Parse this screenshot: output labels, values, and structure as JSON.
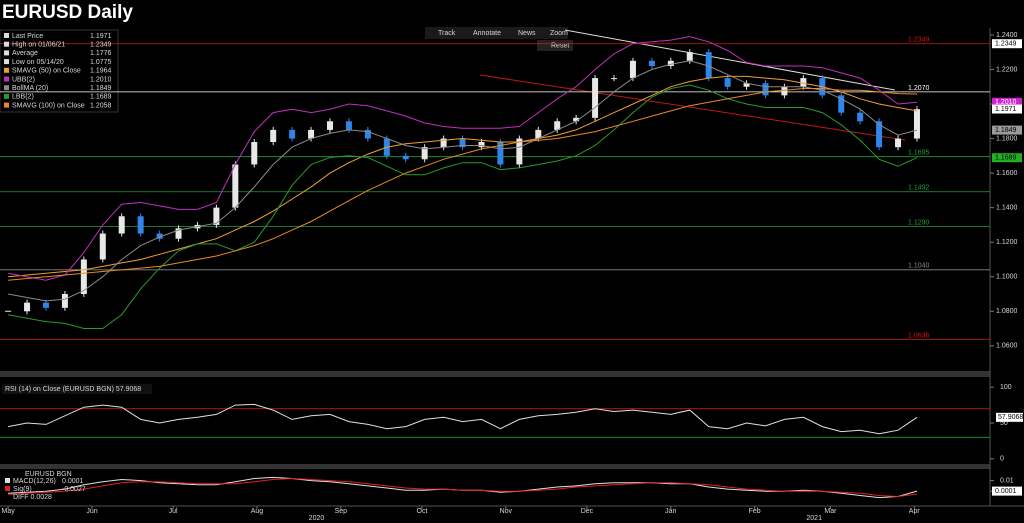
{
  "title": "EURUSD Daily",
  "toolbar": [
    "Track",
    "Annotate",
    "News",
    "Zoom",
    "Reset"
  ],
  "chart_data": [
    {
      "type": "candlestick",
      "x": [
        0,
        7,
        14,
        21,
        28,
        35,
        42,
        49,
        56,
        63,
        70,
        77,
        84,
        91,
        98,
        105,
        112,
        119,
        126,
        133,
        140,
        147,
        154,
        161,
        168,
        175,
        182,
        189,
        196,
        203,
        210,
        217,
        224,
        231,
        238,
        245,
        252,
        259,
        266,
        273,
        280,
        287,
        294,
        301,
        308,
        315,
        322,
        329,
        336
      ],
      "xlim": [
        -3,
        363
      ],
      "xticks": [
        {
          "value": 0,
          "label": "May"
        },
        {
          "value": 31,
          "label": "Jun"
        },
        {
          "value": 61,
          "label": "Jul"
        },
        {
          "value": 92,
          "label": "Aug"
        },
        {
          "value": 123,
          "label": "Sep"
        },
        {
          "value": 153,
          "label": "Oct"
        },
        {
          "value": 184,
          "label": "Nov"
        },
        {
          "value": 214,
          "label": "Dec"
        },
        {
          "value": 245,
          "label": "Jan"
        },
        {
          "value": 276,
          "label": "Feb"
        },
        {
          "value": 304,
          "label": "Mar"
        },
        {
          "value": 335,
          "label": "Apr"
        }
      ],
      "year_labels": [
        {
          "value": 114,
          "label": "2020"
        },
        {
          "value": 298,
          "label": "2021"
        }
      ],
      "ylim": [
        1.046,
        1.244
      ],
      "yticks": [
        {
          "value": 1.24,
          "label": "1.2400"
        },
        {
          "value": 1.22,
          "label": "1.2200"
        },
        {
          "value": 1.2,
          "label": "1.2000"
        },
        {
          "value": 1.18,
          "label": "1.1800"
        },
        {
          "value": 1.16,
          "label": "1.1600"
        },
        {
          "value": 1.14,
          "label": "1.1400"
        },
        {
          "value": 1.12,
          "label": "1.1200"
        },
        {
          "value": 1.1,
          "label": "1.1000"
        },
        {
          "value": 1.08,
          "label": "1.0800"
        },
        {
          "value": 1.06,
          "label": "1.0600"
        }
      ],
      "up_color": "#e8e8e8",
      "down_color": "#2f86e8",
      "series": [
        {
          "name": "Last Price",
          "style": "candle",
          "values": [
            1.08,
            1.085,
            1.082,
            1.09,
            1.11,
            1.125,
            1.135,
            1.125,
            1.122,
            1.128,
            1.13,
            1.14,
            1.165,
            1.178,
            1.185,
            1.18,
            1.185,
            1.19,
            1.185,
            1.18,
            1.17,
            1.168,
            1.175,
            1.18,
            1.175,
            1.178,
            1.165,
            1.18,
            1.185,
            1.19,
            1.192,
            1.215,
            1.215,
            1.225,
            1.222,
            1.225,
            1.23,
            1.215,
            1.21,
            1.212,
            1.205,
            1.21,
            1.215,
            1.205,
            1.195,
            1.19,
            1.175,
            1.18,
            1.197
          ]
        },
        {
          "name": "SMAVG (50)  on Close",
          "style": "line",
          "color": "#f0a030",
          "values": [
            1.1,
            1.101,
            1.102,
            1.103,
            1.104,
            1.106,
            1.108,
            1.11,
            1.113,
            1.116,
            1.119,
            1.122,
            1.127,
            1.132,
            1.138,
            1.145,
            1.152,
            1.16,
            1.166,
            1.171,
            1.175,
            1.177,
            1.178,
            1.179,
            1.18,
            1.179,
            1.178,
            1.178,
            1.18,
            1.182,
            1.185,
            1.19,
            1.195,
            1.2,
            1.205,
            1.21,
            1.213,
            1.215,
            1.216,
            1.216,
            1.215,
            1.214,
            1.212,
            1.21,
            1.207,
            1.203,
            1.2,
            1.198,
            1.196
          ]
        },
        {
          "name": "UBB(2)",
          "style": "line",
          "color": "#c030c0",
          "values": [
            1.102,
            1.1,
            1.098,
            1.101,
            1.114,
            1.13,
            1.142,
            1.143,
            1.141,
            1.139,
            1.139,
            1.143,
            1.165,
            1.184,
            1.195,
            1.197,
            1.195,
            1.197,
            1.2,
            1.199,
            1.196,
            1.193,
            1.189,
            1.187,
            1.186,
            1.186,
            1.186,
            1.187,
            1.195,
            1.203,
            1.21,
            1.22,
            1.229,
            1.235,
            1.236,
            1.237,
            1.239,
            1.236,
            1.231,
            1.224,
            1.222,
            1.222,
            1.222,
            1.221,
            1.218,
            1.215,
            1.208,
            1.2,
            1.201
          ]
        },
        {
          "name": "BollMA (20)",
          "style": "line",
          "color": "#8a8a8a",
          "values": [
            1.09,
            1.088,
            1.086,
            1.087,
            1.092,
            1.1,
            1.11,
            1.118,
            1.123,
            1.127,
            1.129,
            1.131,
            1.14,
            1.152,
            1.165,
            1.175,
            1.18,
            1.183,
            1.185,
            1.184,
            1.18,
            1.176,
            1.174,
            1.175,
            1.176,
            1.176,
            1.174,
            1.175,
            1.18,
            1.185,
            1.19,
            1.198,
            1.207,
            1.215,
            1.22,
            1.223,
            1.225,
            1.222,
            1.217,
            1.212,
            1.21,
            1.21,
            1.21,
            1.208,
            1.203,
            1.197,
            1.188,
            1.182,
            1.1849
          ]
        },
        {
          "name": "LBB(2)",
          "style": "line",
          "color": "#2a9a2a",
          "values": [
            1.078,
            1.076,
            1.074,
            1.073,
            1.07,
            1.07,
            1.078,
            1.093,
            1.105,
            1.115,
            1.119,
            1.119,
            1.115,
            1.12,
            1.135,
            1.153,
            1.165,
            1.169,
            1.17,
            1.169,
            1.164,
            1.159,
            1.159,
            1.163,
            1.166,
            1.166,
            1.162,
            1.163,
            1.165,
            1.167,
            1.17,
            1.176,
            1.185,
            1.195,
            1.204,
            1.209,
            1.211,
            1.208,
            1.203,
            1.2,
            1.198,
            1.198,
            1.198,
            1.195,
            1.188,
            1.179,
            1.168,
            1.164,
            1.1689
          ]
        },
        {
          "name": "SMAVG (100)  on Close",
          "style": "line",
          "color": "#e88a20",
          "values": [
            1.098,
            1.099,
            1.1,
            1.101,
            1.102,
            1.103,
            1.104,
            1.105,
            1.106,
            1.108,
            1.11,
            1.112,
            1.115,
            1.118,
            1.122,
            1.127,
            1.132,
            1.138,
            1.144,
            1.15,
            1.155,
            1.16,
            1.164,
            1.168,
            1.171,
            1.174,
            1.176,
            1.178,
            1.179,
            1.18,
            1.182,
            1.184,
            1.187,
            1.19,
            1.193,
            1.196,
            1.199,
            1.201,
            1.203,
            1.205,
            1.207,
            1.208,
            1.209,
            1.209,
            1.208,
            1.208,
            1.207,
            1.206,
            1.2058
          ]
        }
      ],
      "levels": [
        {
          "value": 1.2349,
          "label": "1.2349",
          "color": "#d01818"
        },
        {
          "value": 1.207,
          "label": "1.2070",
          "color": "#ffffff"
        },
        {
          "value": 1.1695,
          "label": "1.1695",
          "color": "#1fa03a"
        },
        {
          "value": 1.1492,
          "label": "1.1492",
          "color": "#1fa03a"
        },
        {
          "value": 1.129,
          "label": "1.1290",
          "color": "#1fa03a"
        },
        {
          "value": 1.104,
          "label": "1.1040",
          "color": "#888888"
        },
        {
          "value": 1.0636,
          "label": "1.0636",
          "color": "#d01818"
        }
      ],
      "legend": [
        {
          "label": "Last Price",
          "value": "1.1971",
          "color": "#dddddd"
        },
        {
          "label": "High on 01/06/21",
          "value": "1.2349",
          "color": "#dddddd"
        },
        {
          "label": "Average",
          "value": "1.1776",
          "color": "#dddddd"
        },
        {
          "label": "Low on 05/14/20",
          "value": "1.0775",
          "color": "#dddddd"
        },
        {
          "label": "SMAVG (50)  on Close",
          "value": "1.1964",
          "color": "#f0a030"
        },
        {
          "label": "UBB(2)",
          "value": "1.2010",
          "color": "#c030c0"
        },
        {
          "label": "BollMA (20)",
          "value": "1.1849",
          "color": "#8a8a8a"
        },
        {
          "label": "LBB(2)",
          "value": "1.1689",
          "color": "#2a9a2a"
        },
        {
          "label": "SMAVG (100)  on Close",
          "value": "1.2058",
          "color": "#e88a20"
        }
      ]
    },
    {
      "type": "line",
      "title": "RSI (14)  on Close (EURUSD BGN) 57.9068",
      "ylim": [
        -10,
        110
      ],
      "yticks": [
        100,
        50,
        0
      ],
      "levels": [
        {
          "value": 70,
          "color": "#c01818"
        },
        {
          "value": 30,
          "color": "#1fa03a"
        }
      ],
      "series": [
        {
          "color": "#e0e0e0",
          "values": [
            45,
            50,
            48,
            60,
            72,
            75,
            72,
            55,
            50,
            55,
            58,
            62,
            75,
            76,
            68,
            55,
            60,
            62,
            52,
            48,
            42,
            45,
            55,
            58,
            52,
            55,
            42,
            55,
            60,
            62,
            65,
            70,
            66,
            68,
            65,
            62,
            68,
            45,
            42,
            50,
            46,
            55,
            58,
            45,
            38,
            40,
            35,
            40,
            57.9068
          ]
        }
      ],
      "last_label": "57.9068"
    },
    {
      "type": "line",
      "title": "EURUSD BGN",
      "ylim": [
        -0.013,
        0.02
      ],
      "yticks": [
        0.01,
        0
      ],
      "series": [
        {
          "name": "MACD(12,26)",
          "value_label": "0.0001",
          "color": "#e0e0e0",
          "values": [
            -0.002,
            -0.001,
            0.0,
            0.002,
            0.006,
            0.009,
            0.011,
            0.01,
            0.008,
            0.007,
            0.006,
            0.006,
            0.009,
            0.012,
            0.013,
            0.012,
            0.01,
            0.009,
            0.007,
            0.005,
            0.003,
            0.001,
            0.001,
            0.002,
            0.001,
            0.001,
            -0.001,
            0.0,
            0.002,
            0.004,
            0.005,
            0.007,
            0.008,
            0.008,
            0.008,
            0.007,
            0.007,
            0.004,
            0.002,
            0.001,
            0.0,
            0.0,
            0.001,
            0.0,
            -0.002,
            -0.004,
            -0.006,
            -0.005,
            0.0001
          ]
        },
        {
          "name": "Sig(9)",
          "value_label": "-0.0027",
          "color": "#e02020",
          "values": [
            -0.003,
            -0.002,
            -0.001,
            0.0,
            0.002,
            0.005,
            0.008,
            0.009,
            0.009,
            0.008,
            0.007,
            0.007,
            0.007,
            0.009,
            0.011,
            0.012,
            0.011,
            0.01,
            0.009,
            0.007,
            0.005,
            0.003,
            0.002,
            0.002,
            0.001,
            0.001,
            0.0,
            0.0,
            0.001,
            0.002,
            0.004,
            0.005,
            0.006,
            0.007,
            0.008,
            0.008,
            0.007,
            0.006,
            0.004,
            0.002,
            0.001,
            0.0,
            0.0,
            0.0,
            -0.001,
            -0.002,
            -0.004,
            -0.005,
            -0.0027
          ]
        }
      ],
      "diff_label": "DIFF 0.0028"
    }
  ]
}
